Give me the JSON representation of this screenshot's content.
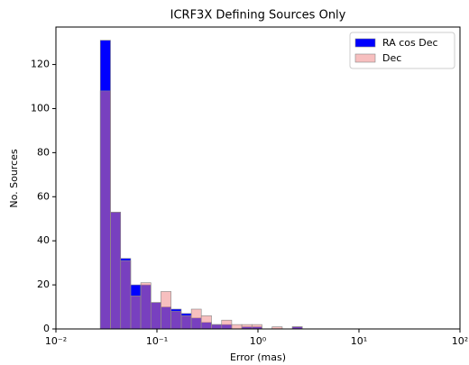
{
  "chart_data": {
    "type": "histogram",
    "title": "ICRF3X Defining Sources Only",
    "x_label": "Error (mas)",
    "y_label": "No. Sources",
    "bins": [
      0.0275,
      0.0347,
      0.0437,
      0.055,
      0.0692,
      0.0871,
      0.1096,
      0.138,
      0.174,
      0.219,
      0.275,
      0.347,
      0.437,
      0.55,
      0.692,
      0.871,
      1.096,
      1.38,
      1.74,
      2.19,
      2.75
    ],
    "series": [
      {
        "name": "RA cos Dec",
        "color": "#0000ff",
        "values": [
          131,
          53,
          32,
          20,
          20,
          12,
          10,
          9,
          7,
          5,
          3,
          2,
          2,
          0,
          1,
          1,
          0,
          0,
          0,
          1
        ]
      },
      {
        "name": "Dec",
        "color": "#f08080",
        "values": [
          108,
          53,
          31,
          15,
          21,
          12,
          17,
          8,
          6,
          9,
          6,
          2,
          4,
          2,
          2,
          2,
          0,
          1,
          0,
          1
        ]
      }
    ],
    "xscale": "log",
    "xlim": [
      0.01,
      100
    ],
    "xticks": [
      {
        "value": 0.01,
        "label": "10⁻²"
      },
      {
        "value": 0.1,
        "label": "10⁻¹"
      },
      {
        "value": 1,
        "label": "10⁰"
      },
      {
        "value": 10,
        "label": "10¹"
      },
      {
        "value": 100,
        "label": "10²"
      }
    ],
    "ylim": [
      0,
      137
    ],
    "yticks": [
      0,
      20,
      40,
      60,
      80,
      100,
      120
    ],
    "legend": "upper right"
  }
}
